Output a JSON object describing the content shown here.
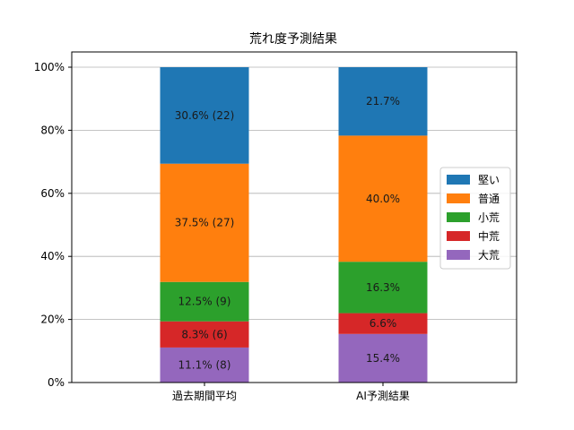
{
  "chart_data": {
    "type": "bar",
    "stacked": true,
    "title": "荒れ度予測結果",
    "categories": [
      "過去期間平均",
      "AI予測結果"
    ],
    "ylim": [
      0,
      100
    ],
    "y_unit": "%",
    "y_ticks": [
      "0%",
      "20%",
      "40%",
      "60%",
      "80%",
      "100%"
    ],
    "grid": "horizontal",
    "legend_placement": "center-right",
    "series": [
      {
        "name": "大荒",
        "color": "#9467bd",
        "values": [
          11.1,
          15.4
        ],
        "labels": [
          "11.1% (8)",
          "15.4%"
        ]
      },
      {
        "name": "中荒",
        "color": "#d62728",
        "values": [
          8.3,
          6.6
        ],
        "labels": [
          "8.3% (6)",
          "6.6%"
        ]
      },
      {
        "name": "小荒",
        "color": "#2ca02c",
        "values": [
          12.5,
          16.3
        ],
        "labels": [
          "12.5% (9)",
          "16.3%"
        ]
      },
      {
        "name": "普通",
        "color": "#ff7f0e",
        "values": [
          37.5,
          40.0
        ],
        "labels": [
          "37.5% (27)",
          "40.0%"
        ]
      },
      {
        "name": "堅い",
        "color": "#1f77b4",
        "values": [
          30.6,
          21.7
        ],
        "labels": [
          "30.6% (22)",
          "21.7%"
        ]
      }
    ],
    "legend_order": [
      "堅い",
      "普通",
      "小荒",
      "中荒",
      "大荒"
    ]
  }
}
